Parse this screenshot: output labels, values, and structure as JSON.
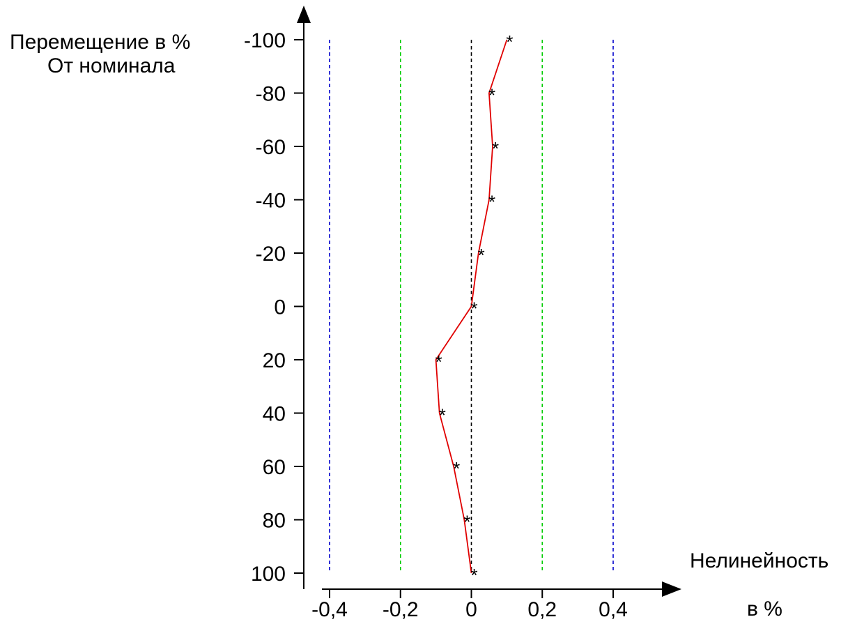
{
  "chart_data": {
    "type": "line",
    "ylabel_line1": "Перемещение в %",
    "ylabel_line2": "От номинала",
    "xlabel_line1": "Нелинейность",
    "xlabel_line2": "в %",
    "x_ticks": [
      "-0,4",
      "-0,2",
      "0",
      "0,2",
      "0,4"
    ],
    "x_tick_values": [
      -0.4,
      -0.2,
      0,
      0.2,
      0.4
    ],
    "y_ticks": [
      "-100",
      "-80",
      "-60",
      "-40",
      "-20",
      "0",
      "20",
      "40",
      "60",
      "80",
      "100"
    ],
    "y_tick_values": [
      -100,
      -80,
      -60,
      -40,
      -20,
      0,
      20,
      40,
      60,
      80,
      100
    ],
    "xlim": [
      -0.4,
      0.4
    ],
    "ylim": [
      -100,
      100
    ],
    "y_inverted": true,
    "series": [
      {
        "color": "#e00000",
        "marker": "*",
        "points": [
          {
            "x": 0.1,
            "y": -100
          },
          {
            "x": 0.05,
            "y": -80
          },
          {
            "x": 0.06,
            "y": -60
          },
          {
            "x": 0.05,
            "y": -40
          },
          {
            "x": 0.02,
            "y": -20
          },
          {
            "x": 0.0,
            "y": 0
          },
          {
            "x": -0.1,
            "y": 20
          },
          {
            "x": -0.09,
            "y": 40
          },
          {
            "x": -0.05,
            "y": 60
          },
          {
            "x": -0.02,
            "y": 80
          },
          {
            "x": 0.0,
            "y": 100
          }
        ]
      }
    ],
    "reference_lines": [
      {
        "x": -0.4,
        "color": "#0000cc",
        "style": "dashed"
      },
      {
        "x": -0.2,
        "color": "#00cc00",
        "style": "dashed"
      },
      {
        "x": 0.0,
        "color": "#000000",
        "style": "dashed"
      },
      {
        "x": 0.2,
        "color": "#00cc00",
        "style": "dashed"
      },
      {
        "x": 0.4,
        "color": "#0000cc",
        "style": "dashed"
      }
    ],
    "grid": false
  }
}
